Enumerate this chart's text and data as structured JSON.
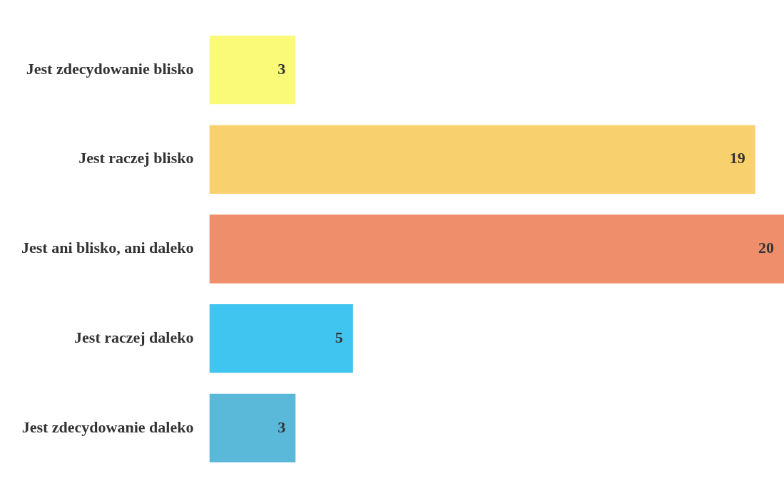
{
  "chart_data": {
    "type": "bar",
    "orientation": "horizontal",
    "categories": [
      "Jest zdecydowanie blisko",
      "Jest raczej blisko",
      "Jest ani blisko, ani daleko",
      "Jest raczej daleko",
      "Jest zdecydowanie daleko"
    ],
    "values": [
      3,
      19,
      20,
      5,
      3
    ],
    "colors": [
      "#fafa78",
      "#f9d06e",
      "#ee8e6a",
      "#40c4f0",
      "#5ab8d8"
    ],
    "data_labels": true,
    "tick_labels": "y",
    "grid": false
  }
}
